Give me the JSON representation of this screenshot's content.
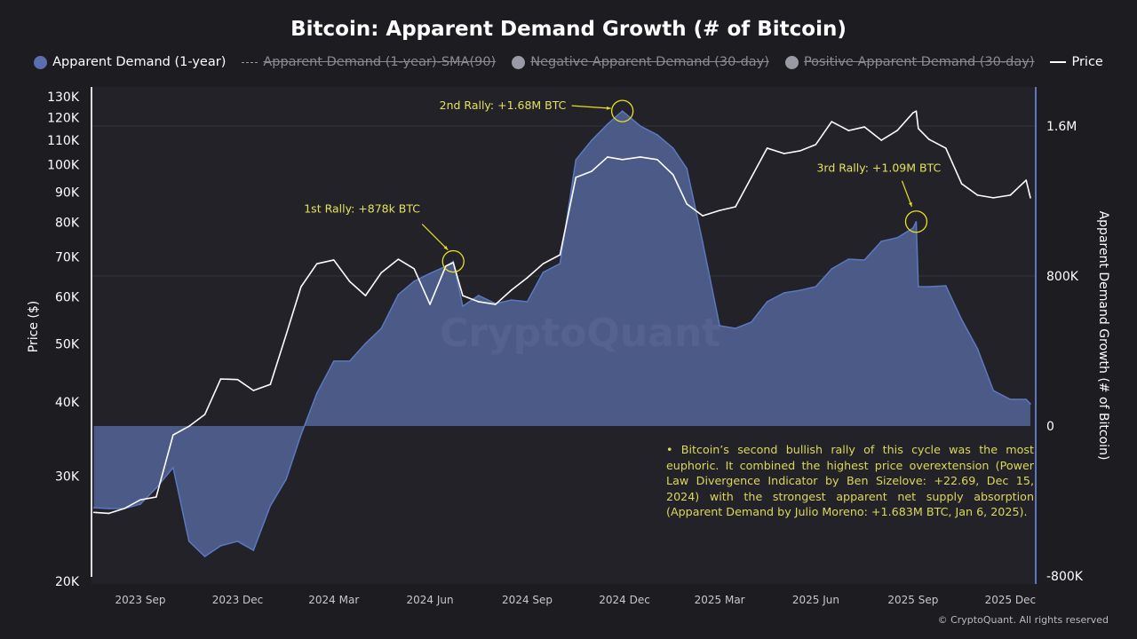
{
  "chart_data": {
    "type": "area",
    "title": "Bitcoin: Apparent Demand Growth (# of Bitcoin)",
    "legend": {
      "placement": "top",
      "items": [
        {
          "label": "Apparent Demand (1-year)",
          "color": "#5b6fae",
          "visible": true,
          "marker": "dot"
        },
        {
          "label": "Apparent Demand (1-year)-SMA(90)",
          "color": "#999999",
          "visible": false,
          "marker": "dashed-line"
        },
        {
          "label": "Negative Apparent Demand (30-day)",
          "color": "#9a9aa4",
          "visible": false,
          "marker": "dot"
        },
        {
          "label": "Positive Apparent Demand (30-day)",
          "color": "#9a9aa4",
          "visible": false,
          "marker": "dot"
        },
        {
          "label": "Price",
          "color": "#ffffff",
          "visible": true,
          "marker": "line"
        }
      ]
    },
    "ylabel_left": "Price ($)",
    "ylabel_right": "Apparent Demand Growth (# of Bitcoin)",
    "y_left_scale": "log",
    "y_left_range": [
      20000,
      135000
    ],
    "y_left_ticks": [
      "130K",
      "120K",
      "110K",
      "100K",
      "90K",
      "80K",
      "70K",
      "60K",
      "50K",
      "40K",
      "30K",
      "20K"
    ],
    "y_left_tick_values": [
      130000,
      120000,
      110000,
      100000,
      90000,
      80000,
      70000,
      60000,
      50000,
      40000,
      30000,
      20000
    ],
    "y_right_range": [
      -820000,
      1800000
    ],
    "y_right_ticks": [
      "1.6M",
      "800K",
      "0",
      "-800K"
    ],
    "y_right_tick_values": [
      1600000,
      800000,
      0,
      -800000
    ],
    "x_ticks": [
      "2023 Sep",
      "2023 Dec",
      "2024 Mar",
      "2024 Jun",
      "2024 Sep",
      "2024 Dec",
      "2025 Mar",
      "2025 Jun",
      "2025 Sep",
      "2025 Dec"
    ],
    "x_tick_dates": [
      "2023-10-01",
      "2024-01-01",
      "2024-04-01",
      "2024-07-01",
      "2024-10-01",
      "2025-01-01",
      "2025-04-01",
      "2025-07-01",
      "2025-10-01",
      "2026-01-01"
    ],
    "grid": "horizontal (right axis)",
    "colors": {
      "demand_fill": "#4b5a87",
      "demand_line": "#5b78c0",
      "price": "#ffffff",
      "annotation": "#e4e25c"
    },
    "dates": [
      "2023-08-18",
      "2023-09-01",
      "2023-09-16",
      "2023-10-01",
      "2023-10-16",
      "2023-11-01",
      "2023-11-16",
      "2023-12-01",
      "2023-12-16",
      "2024-01-01",
      "2024-01-16",
      "2024-02-01",
      "2024-02-16",
      "2024-03-01",
      "2024-03-16",
      "2024-04-01",
      "2024-04-16",
      "2024-05-01",
      "2024-05-16",
      "2024-06-01",
      "2024-06-16",
      "2024-07-01",
      "2024-07-16",
      "2024-07-23",
      "2024-08-01",
      "2024-08-16",
      "2024-09-01",
      "2024-09-16",
      "2024-10-01",
      "2024-10-16",
      "2024-11-01",
      "2024-11-16",
      "2024-12-01",
      "2024-12-16",
      "2024-12-30",
      "2025-01-16",
      "2025-02-01",
      "2025-02-16",
      "2025-03-01",
      "2025-03-16",
      "2025-04-01",
      "2025-04-16",
      "2025-05-01",
      "2025-05-16",
      "2025-06-01",
      "2025-06-16",
      "2025-07-01",
      "2025-07-16",
      "2025-08-01",
      "2025-08-16",
      "2025-09-01",
      "2025-09-16",
      "2025-10-01",
      "2025-10-04",
      "2025-10-06",
      "2025-10-16",
      "2025-11-01",
      "2025-11-16",
      "2025-12-01",
      "2025-12-16",
      "2026-01-01",
      "2026-01-16",
      "2026-01-20"
    ],
    "series": [
      {
        "name": "Apparent Demand (1-year)",
        "axis": "right",
        "values": [
          -436000,
          -440000,
          -440000,
          -417000,
          -331000,
          -222000,
          -615000,
          -696000,
          -639000,
          -615000,
          -663000,
          -426000,
          -284000,
          -47000,
          175000,
          346000,
          346000,
          440000,
          521000,
          701000,
          772000,
          814000,
          852000,
          878000,
          639000,
          696000,
          653000,
          672000,
          663000,
          819000,
          866000,
          1420000,
          1524000,
          1610000,
          1680000,
          1600000,
          1553000,
          1482000,
          1373000,
          980000,
          535000,
          521000,
          554000,
          663000,
          710000,
          724000,
          743000,
          838000,
          890000,
          885000,
          985000,
          1004000,
          1056000,
          1090000,
          743000,
          743000,
          748000,
          568000,
          412000,
          189000,
          142000,
          142000,
          118000
        ]
      },
      {
        "name": "Price",
        "axis": "left",
        "values": [
          26100,
          26000,
          26500,
          27400,
          27700,
          35200,
          36400,
          38100,
          43700,
          43600,
          41800,
          42800,
          51900,
          62400,
          68200,
          69200,
          63700,
          60300,
          65900,
          69400,
          66900,
          58300,
          67600,
          68500,
          60300,
          58900,
          58300,
          61600,
          64600,
          68200,
          70600,
          95200,
          97500,
          103000,
          102000,
          103000,
          102000,
          96200,
          85900,
          82100,
          83800,
          85000,
          95200,
          106600,
          104400,
          105500,
          108100,
          118100,
          114100,
          115700,
          109900,
          114100,
          122200,
          123000,
          115000,
          110300,
          106600,
          92900,
          88900,
          88000,
          88900,
          94200,
          88000
        ]
      }
    ],
    "annotations": [
      {
        "text": "1st Rally: +878k BTC",
        "date": "2024-07-23",
        "value": 878000
      },
      {
        "text": "2nd Rally: +1.68M BTC",
        "date": "2024-12-30",
        "value": 1680000
      },
      {
        "text": "3rd Rally: +1.09M BTC",
        "date": "2025-10-04",
        "value": 1090000
      }
    ]
  },
  "note": "• Bitcoin’s second bullish rally of this cycle was the most euphoric. It combined the highest price overextension (Power Law Divergence Indicator by Ben Sizelove: +22.69, Dec 15, 2024) with the strongest apparent net supply absorption (Apparent Demand by Julio Moreno: +1.683M BTC, Jan 6, 2025).",
  "watermark": "CryptoQuant",
  "copyright": "© CryptoQuant. All rights reserved"
}
